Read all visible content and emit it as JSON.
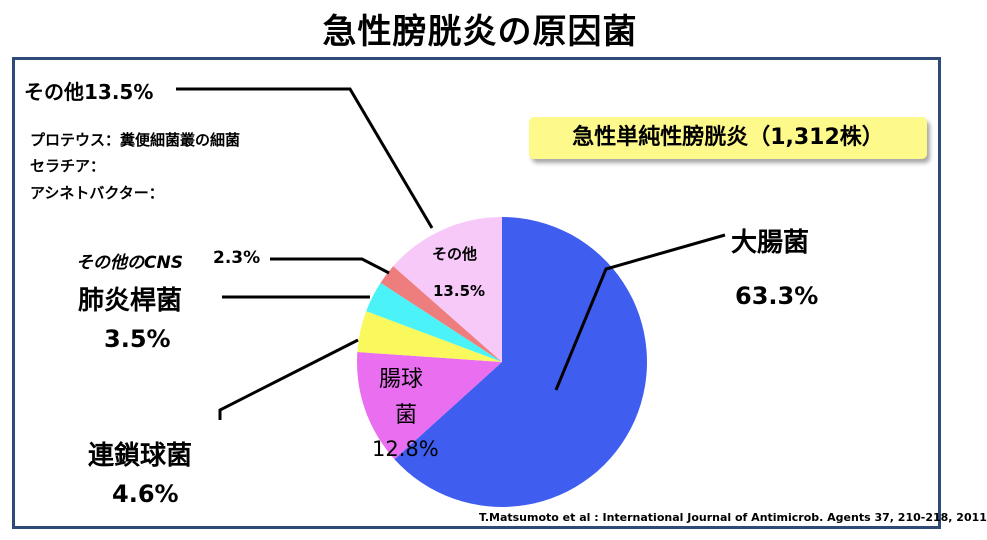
{
  "title": "急性膀胱炎の原因菌",
  "badge": "急性単純性膀胱炎（1,312株）",
  "notes": [
    "プロテウス：糞便細菌叢の細菌",
    "セラチア：",
    "アシネトバクター："
  ],
  "source": "T.Matsumoto et al : International Journal of Antimicrob. Agents 37, 210-218, 2011",
  "chart_data": {
    "type": "pie",
    "start_angle_deg": 0,
    "direction": "clockwise",
    "slices": [
      {
        "label": "大腸菌",
        "value": 63.3,
        "value_text": "63.3%",
        "color": "#3f5ef0"
      },
      {
        "label": "腸球菌",
        "value": 12.8,
        "value_text": "12.8%",
        "color": "#ea6ef0"
      },
      {
        "label": "連鎖球菌",
        "value": 4.6,
        "value_text": "4.6%",
        "color": "#f9f85c"
      },
      {
        "label": "肺炎桿菌",
        "value": 3.5,
        "value_text": "3.5%",
        "color": "#4bf3f8"
      },
      {
        "label": "その他のCNS",
        "value": 2.3,
        "value_text": "2.3%",
        "color": "#ee7e7e"
      },
      {
        "label": "その他",
        "value": 13.5,
        "value_text": "13.5%",
        "color": "#f6c9f8"
      }
    ],
    "callouts": {
      "other_outer": "その他13.5%",
      "cns": "その他のCNS",
      "cns_value": "2.3%",
      "strep_label": "連鎖球菌",
      "strep_value": "4.6%",
      "kleb_label": "肺炎桿菌",
      "kleb_value": "3.5%",
      "ecoli_label": "大腸菌",
      "ecoli_value": "63.3%",
      "entero_label_1": "腸球",
      "entero_label_2": "菌",
      "entero_value": "12.8%",
      "other_inner_label": "その他",
      "other_inner_value": "13.5%"
    }
  }
}
